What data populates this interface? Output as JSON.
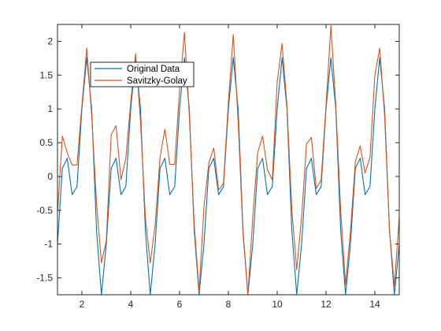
{
  "chart_data": {
    "type": "line",
    "title": "",
    "xlabel": "",
    "ylabel": "",
    "xlim": [
      1,
      15
    ],
    "ylim": [
      -1.75,
      2.25
    ],
    "xticks": [
      2,
      4,
      6,
      8,
      10,
      12,
      14
    ],
    "yticks": [
      -1.5,
      -1,
      -0.5,
      0,
      0.5,
      1,
      1.5,
      2
    ],
    "xtick_labels": [
      "2",
      "4",
      "6",
      "8",
      "10",
      "12",
      "14"
    ],
    "ytick_labels": [
      "-1.5",
      "-1",
      "-0.5",
      "0",
      "0.5",
      "1",
      "1.5",
      "2"
    ],
    "grid": false,
    "legend_position": "upper-left (inside axes)",
    "colors": {
      "original": "#0072BD",
      "savitzky": "#D95319",
      "axis": "#262626",
      "plot_bg": "#ffffff"
    },
    "series": [
      {
        "name": "Original Data",
        "x": [
          1.0,
          1.2,
          1.4,
          1.6,
          1.8,
          2.0,
          2.2,
          2.4,
          2.6,
          2.8,
          3.0,
          3.2,
          3.4,
          3.6,
          3.8,
          4.0,
          4.2,
          4.4,
          4.6,
          4.8,
          5.0,
          5.2,
          5.4,
          5.6,
          5.8,
          6.0,
          6.2,
          6.4,
          6.6,
          6.8,
          7.0,
          7.2,
          7.4,
          7.6,
          7.8,
          8.0,
          8.2,
          8.4,
          8.6,
          8.8,
          9.0,
          9.2,
          9.4,
          9.6,
          9.8,
          10.0,
          10.2,
          10.4,
          10.6,
          10.8,
          11.0,
          11.2,
          11.4,
          11.6,
          11.8,
          12.0,
          12.2,
          12.4,
          12.6,
          12.8,
          13.0,
          13.2,
          13.4,
          13.6,
          13.8,
          14.0,
          14.2,
          14.4,
          14.6,
          14.8,
          15.0
        ],
        "values": [
          -1.0,
          0.12,
          0.27,
          -0.27,
          -0.15,
          1.0,
          1.76,
          1.0,
          -0.8,
          -1.75,
          -1.0,
          0.12,
          0.27,
          -0.27,
          -0.15,
          1.0,
          1.76,
          1.0,
          -0.8,
          -1.75,
          -1.0,
          0.12,
          0.27,
          -0.27,
          -0.15,
          1.0,
          1.76,
          1.0,
          -0.8,
          -1.75,
          -1.0,
          0.12,
          0.27,
          -0.27,
          -0.15,
          1.0,
          1.76,
          1.0,
          -0.8,
          -1.75,
          -1.0,
          0.12,
          0.27,
          -0.27,
          -0.15,
          1.0,
          1.76,
          1.0,
          -0.8,
          -1.75,
          -1.0,
          0.12,
          0.27,
          -0.27,
          -0.15,
          1.0,
          1.76,
          1.0,
          -0.8,
          -1.75,
          -1.0,
          0.12,
          0.27,
          -0.27,
          -0.15,
          1.0,
          1.76,
          1.0,
          -0.8,
          -1.75,
          -1.0
        ]
      },
      {
        "name": "Savitzky-Golay",
        "x": [
          1.0,
          1.2,
          1.4,
          1.6,
          1.8,
          2.0,
          2.2,
          2.4,
          2.6,
          2.8,
          3.0,
          3.2,
          3.4,
          3.6,
          3.8,
          4.0,
          4.2,
          4.4,
          4.6,
          4.8,
          5.0,
          5.2,
          5.4,
          5.6,
          5.8,
          6.0,
          6.2,
          6.4,
          6.6,
          6.8,
          7.0,
          7.2,
          7.4,
          7.6,
          7.8,
          8.0,
          8.2,
          8.4,
          8.6,
          8.8,
          9.0,
          9.2,
          9.4,
          9.6,
          9.8,
          10.0,
          10.2,
          10.4,
          10.6,
          10.8,
          11.0,
          11.2,
          11.4,
          11.6,
          11.8,
          12.0,
          12.2,
          12.4,
          12.6,
          12.8,
          13.0,
          13.2,
          13.4,
          13.6,
          13.8,
          14.0,
          14.2,
          14.4,
          14.6,
          14.8,
          15.0
        ],
        "values": [
          -0.55,
          0.6,
          0.35,
          0.17,
          0.17,
          1.05,
          1.9,
          0.9,
          -0.4,
          -1.28,
          -0.95,
          0.62,
          0.75,
          -0.05,
          0.27,
          1.1,
          1.82,
          0.82,
          -0.6,
          -1.28,
          -0.72,
          0.28,
          0.7,
          0.18,
          0.18,
          1.28,
          2.13,
          0.9,
          -0.7,
          -1.7,
          -0.45,
          0.2,
          0.42,
          -0.2,
          -0.1,
          1.1,
          2.1,
          0.82,
          -0.85,
          -1.75,
          -0.6,
          0.35,
          0.6,
          0.1,
          -0.05,
          1.4,
          1.97,
          1.05,
          -0.5,
          -1.38,
          -0.6,
          0.48,
          0.58,
          -0.18,
          -0.05,
          1.05,
          2.23,
          1.05,
          -0.5,
          -1.6,
          -0.82,
          0.22,
          0.45,
          0.05,
          0.28,
          1.5,
          1.9,
          0.9,
          -0.8,
          -1.62,
          -0.6
        ]
      }
    ]
  }
}
